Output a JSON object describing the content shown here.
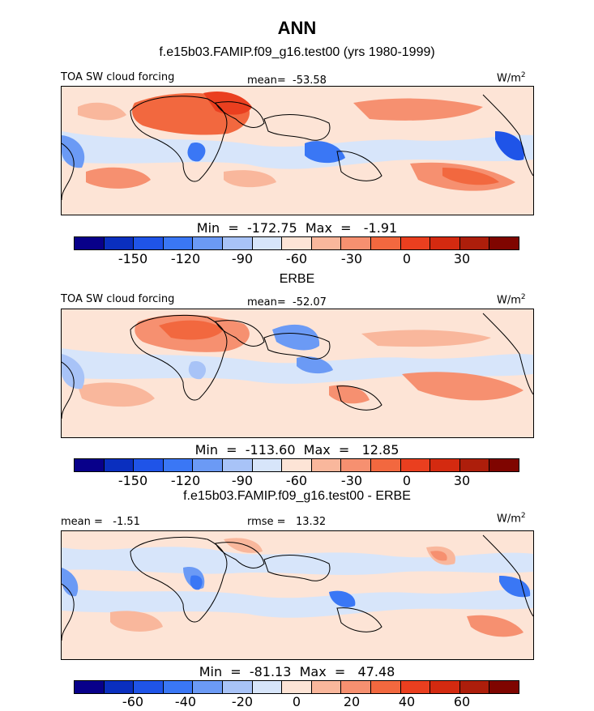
{
  "title": "ANN",
  "palette": [
    "#08008a",
    "#0a2fbf",
    "#1f54e8",
    "#3a77f5",
    "#6b9af5",
    "#a8c3f7",
    "#d7e5fa",
    "#fde4d6",
    "#f9b79c",
    "#f69070",
    "#f2683f",
    "#ea3f1f",
    "#d42a10",
    "#ad1e0b",
    "#7f0500"
  ],
  "panels": [
    {
      "title": "f.e15b03.FAMIP.f09_g16.test00 (yrs 1980-1999)",
      "left_label": "TOA SW cloud forcing",
      "center_label": "mean=  -53.58",
      "units": "W/m",
      "units_sup": "2",
      "minmax": "Min  =  -172.75  Max  =   -1.91",
      "ticks": [
        "-150",
        "-120",
        "-90",
        "-60",
        "-30",
        "0",
        "30"
      ]
    },
    {
      "title": "ERBE",
      "left_label": "TOA SW cloud forcing",
      "center_label": "mean=  -52.07",
      "units": "W/m",
      "units_sup": "2",
      "minmax": "Min  =  -113.60  Max  =   12.85",
      "ticks": [
        "-150",
        "-120",
        "-90",
        "-60",
        "-30",
        "0",
        "30"
      ]
    },
    {
      "title": "f.e15b03.FAMIP.f09_g16.test00 - ERBE",
      "left_label": "mean =   -1.51",
      "center_label": "rmse =   13.32",
      "units": "W/m",
      "units_sup": "2",
      "minmax": "Min  =  -81.13  Max  =   47.48",
      "ticks": [
        "-60",
        "-40",
        "-20",
        "0",
        "20",
        "40",
        "60"
      ]
    }
  ]
}
